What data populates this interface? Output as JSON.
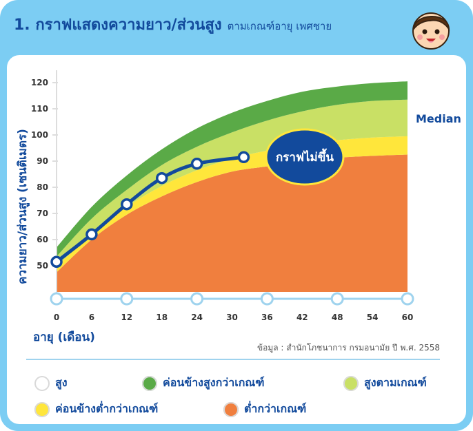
{
  "header": {
    "title": "1. กราฟแสดงความยาว/ส่วนสูง",
    "subtitle": "ตามเกณฑ์อายุ เพศชาย"
  },
  "chart_data": {
    "type": "area",
    "xlabel": "อายุ (เดือน)",
    "ylabel": "ความยาว/ส่วนสูง (เซนติเมตร)",
    "x_ticks": [
      0,
      6,
      12,
      18,
      24,
      30,
      36,
      42,
      48,
      54,
      60
    ],
    "y_ticks": [
      50,
      60,
      70,
      80,
      90,
      100,
      110,
      120
    ],
    "xlim": [
      0,
      60
    ],
    "ylim": [
      40,
      125
    ],
    "median_label": "Median",
    "bands": [
      {
        "name": "ต่ำกว่าเกณฑ์",
        "color": "#f07f3e",
        "x": [
          0,
          6,
          12,
          18,
          24,
          30,
          36,
          42,
          48,
          54,
          60
        ],
        "lower": [
          40,
          40,
          40,
          40,
          40,
          40,
          40,
          40,
          40,
          40,
          40
        ],
        "upper": [
          47.5,
          60.0,
          69.5,
          76.5,
          82.0,
          86.0,
          88.0,
          90.0,
          91.3,
          92.0,
          92.5
        ]
      },
      {
        "name": "ค่อนข้างต่ำกว่าเกณฑ์",
        "color": "#ffe63b",
        "x": [
          0,
          6,
          12,
          18,
          24,
          30,
          36,
          42,
          48,
          54,
          60
        ],
        "lower": [
          47.5,
          60.0,
          69.5,
          76.5,
          82.0,
          86.0,
          88.0,
          90.0,
          91.3,
          92.0,
          92.5
        ],
        "upper": [
          49.5,
          62.5,
          72.5,
          80.5,
          86.5,
          91.0,
          94.0,
          96.5,
          98.0,
          99.0,
          99.5
        ]
      },
      {
        "name": "สูงตามเกณฑ์",
        "color": "#c9e065",
        "x": [
          0,
          6,
          12,
          18,
          24,
          30,
          36,
          42,
          48,
          54,
          60
        ],
        "lower": [
          49.5,
          62.5,
          72.5,
          80.5,
          86.5,
          91.0,
          94.0,
          96.5,
          98.0,
          99.0,
          99.5
        ],
        "upper": [
          53.5,
          68.0,
          79.0,
          88.5,
          95.5,
          101.0,
          105.5,
          109.0,
          111.5,
          113.0,
          113.5
        ]
      },
      {
        "name": "ค่อนข้างสูงกว่าเกณฑ์",
        "color": "#5aaa47",
        "x": [
          0,
          6,
          12,
          18,
          24,
          30,
          36,
          42,
          48,
          54,
          60
        ],
        "lower": [
          53.5,
          68.0,
          79.0,
          88.5,
          95.5,
          101.0,
          105.5,
          109.0,
          111.5,
          113.0,
          113.5
        ],
        "upper": [
          57.0,
          72.5,
          84.5,
          94.5,
          102.5,
          108.5,
          113.0,
          116.5,
          118.5,
          119.8,
          120.5
        ]
      }
    ],
    "series": [
      {
        "x": [
          0,
          6,
          12,
          18,
          24,
          32
        ],
        "y": [
          51.5,
          62.0,
          73.5,
          83.5,
          89.0,
          91.5
        ],
        "color": "#124a9c"
      }
    ],
    "annotation": "กราฟไม่ขึ้น",
    "source": "ข้อมูล : สำนักโภชนาการ กรมอนามัย ปี พ.ศ. 2558"
  },
  "legend": [
    {
      "label": "สูง",
      "color": "#ffffff"
    },
    {
      "label": "ค่อนข้างสูงกว่าเกณฑ์",
      "color": "#5aaa47"
    },
    {
      "label": "สูงตามเกณฑ์",
      "color": "#c9e065"
    },
    {
      "label": "ค่อนข้างต่ำกว่าเกณฑ์",
      "color": "#ffe63b"
    },
    {
      "label": "ต่ำกว่าเกณฑ์",
      "color": "#f07f3e"
    }
  ],
  "colors": {
    "frame": "#7ccdf3",
    "brand": "#124a9c",
    "axis_line": "#9fd3ee"
  },
  "icons": {
    "mascot": "boy-face-icon"
  }
}
